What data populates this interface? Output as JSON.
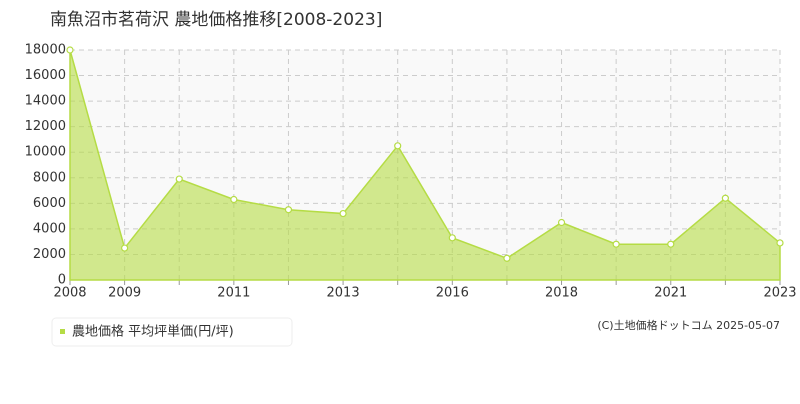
{
  "chart_data": {
    "type": "area",
    "title": "南魚沼市茗荷沢 農地価格推移[2008-2023]",
    "categories": [
      "2008",
      "2009",
      null,
      "2011",
      null,
      "2013",
      null,
      "2016",
      null,
      "2018",
      null,
      "2021",
      null,
      "2023"
    ],
    "series": [
      {
        "name": "農地価格 平均坪単価(円/坪)",
        "color": "#b5dc45",
        "values": [
          18000,
          2500,
          7900,
          6300,
          5500,
          5200,
          10500,
          3300,
          1700,
          4500,
          2800,
          2800,
          6400,
          2900
        ]
      }
    ],
    "ylim": [
      0,
      18000
    ],
    "yticks": [
      0,
      2000,
      4000,
      6000,
      8000,
      10000,
      12000,
      14000,
      16000,
      18000
    ],
    "grid": true,
    "source": "(C)土地価格ドットコム 2025-05-07"
  }
}
